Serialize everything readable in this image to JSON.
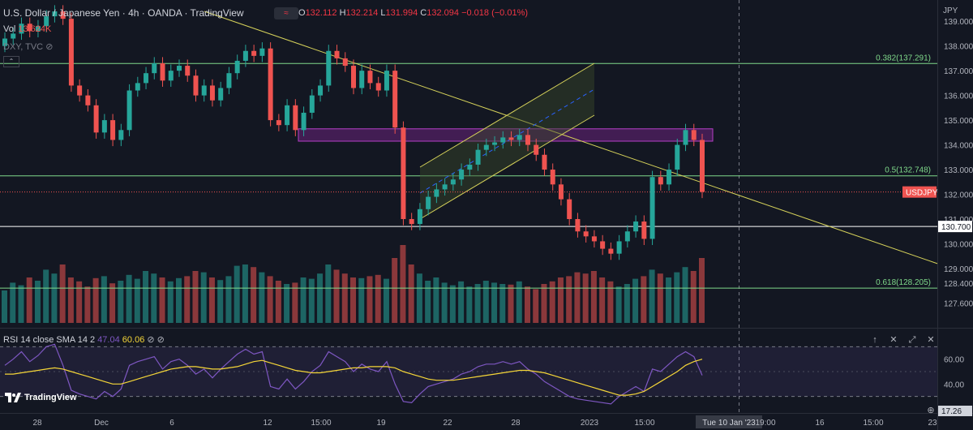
{
  "header": {
    "title": "U.S. Dollar / Japanese Yen · 4h · OANDA · TradingView",
    "ohlc": {
      "o": "132.112",
      "h": "132.214",
      "l": "131.994",
      "c": "132.094",
      "chg": "−0.018 (−0.01%)"
    },
    "vol_label": "Vol",
    "vol_value": "13.624K",
    "compare": "DXY, TVC",
    "currency": "JPY"
  },
  "rsi_header": {
    "label": "RSI 14 close SMA 14 2",
    "rsi": "47.04",
    "sma": "60.06"
  },
  "logo_text": "TradingView",
  "colors": {
    "bull": "#26a69a",
    "bear": "#ef5350",
    "fib": "#7fd98a",
    "trend": "#d6d25a",
    "zone": "#9c27b0",
    "rsi": "#7e57c2",
    "rsi_ma": "#f5d638"
  },
  "chart_data": {
    "type": "candlestick",
    "price_axis": {
      "min": 126.8,
      "max": 139.4,
      "ticks": [
        "139.000",
        "138.000",
        "137.000",
        "136.000",
        "135.000",
        "134.000",
        "133.000",
        "132.000",
        "131.000",
        "130.000",
        "129.000",
        "128.400",
        "127.600"
      ]
    },
    "time_axis": [
      "28",
      "Dec",
      "6",
      "12",
      "15:00",
      "19",
      "22",
      "28",
      "2023",
      "15:00",
      "Tue 10 Jan '23",
      "19:00",
      "16",
      "15:00",
      "23"
    ],
    "current_price": {
      "label": "USDJPY",
      "value": 132.094
    },
    "support_line": {
      "label": "130.700",
      "value": 130.7
    },
    "fib_levels": [
      {
        "label": "0.382(137.291)",
        "value": 137.291
      },
      {
        "label": "0.5(132.748)",
        "value": 132.748
      },
      {
        "label": "0.618(128.205)",
        "value": 128.205
      }
    ],
    "resistance_zone": [
      134.15,
      134.65
    ],
    "closes": [
      138.3,
      138.5,
      138.9,
      138.6,
      138.8,
      139.2,
      139.4,
      139.1,
      136.4,
      136.0,
      135.6,
      134.5,
      135.0,
      134.2,
      134.6,
      136.2,
      136.5,
      136.9,
      137.3,
      136.6,
      137.0,
      137.2,
      136.8,
      136.0,
      136.4,
      135.8,
      136.3,
      136.9,
      137.4,
      137.8,
      137.6,
      137.9,
      135.0,
      134.8,
      135.6,
      134.6,
      135.3,
      136.0,
      136.4,
      137.8,
      137.5,
      137.2,
      136.3,
      137.0,
      136.5,
      136.2,
      137.0,
      134.7,
      131.0,
      130.8,
      131.4,
      131.9,
      132.2,
      132.4,
      132.6,
      133.0,
      133.2,
      133.8,
      134.0,
      134.1,
      134.3,
      134.2,
      134.4,
      134.0,
      133.6,
      133.0,
      132.4,
      131.8,
      131.0,
      130.5,
      130.3,
      130.1,
      129.8,
      129.6,
      130.1,
      130.5,
      130.9,
      130.2,
      132.7,
      132.4,
      133.0,
      134.0,
      134.6,
      134.2,
      132.1
    ],
    "volume": [
      500,
      620,
      580,
      700,
      650,
      820,
      760,
      900,
      700,
      640,
      560,
      690,
      720,
      610,
      650,
      740,
      680,
      800,
      760,
      700,
      640,
      690,
      720,
      800,
      780,
      700,
      660,
      720,
      880,
      900,
      860,
      780,
      720,
      650,
      600,
      620,
      700,
      680,
      760,
      900,
      820,
      760,
      700,
      690,
      720,
      740,
      680,
      1000,
      1200,
      900,
      760,
      650,
      700,
      620,
      580,
      640,
      560,
      600,
      650,
      620,
      600,
      590,
      640,
      560,
      520,
      600,
      640,
      700,
      720,
      780,
      760,
      800,
      700,
      640,
      560,
      600,
      680,
      720,
      820,
      760,
      700,
      780,
      860,
      800,
      1000
    ],
    "rsi": {
      "range": [
        20,
        80
      ],
      "ticks": [
        "60.00",
        "40.00",
        "17.26"
      ],
      "levels": [
        70,
        30
      ],
      "values": [
        55,
        60,
        66,
        58,
        63,
        70,
        72,
        55,
        35,
        32,
        30,
        28,
        34,
        30,
        36,
        55,
        58,
        60,
        62,
        52,
        58,
        60,
        55,
        48,
        52,
        45,
        52,
        58,
        64,
        68,
        64,
        66,
        38,
        36,
        44,
        36,
        42,
        50,
        55,
        66,
        62,
        58,
        50,
        56,
        52,
        50,
        58,
        40,
        26,
        25,
        32,
        38,
        40,
        42,
        44,
        48,
        50,
        54,
        56,
        56,
        58,
        56,
        58,
        52,
        48,
        42,
        38,
        34,
        30,
        28,
        27,
        26,
        25,
        24,
        30,
        34,
        38,
        34,
        52,
        50,
        56,
        62,
        66,
        62,
        47
      ],
      "sma": [
        48,
        48,
        49,
        50,
        51,
        52,
        53,
        52,
        50,
        48,
        46,
        44,
        42,
        40,
        40,
        42,
        44,
        46,
        48,
        50,
        52,
        53,
        54,
        54,
        53,
        52,
        52,
        53,
        54,
        56,
        58,
        59,
        57,
        55,
        53,
        51,
        50,
        49,
        49,
        50,
        51,
        52,
        53,
        53,
        54,
        54,
        54,
        53,
        50,
        48,
        46,
        44,
        43,
        43,
        43,
        44,
        45,
        46,
        47,
        48,
        49,
        50,
        51,
        51,
        50,
        49,
        47,
        45,
        43,
        41,
        39,
        37,
        35,
        33,
        31,
        31,
        32,
        34,
        38,
        42,
        46,
        50,
        55,
        58,
        60
      ]
    }
  }
}
